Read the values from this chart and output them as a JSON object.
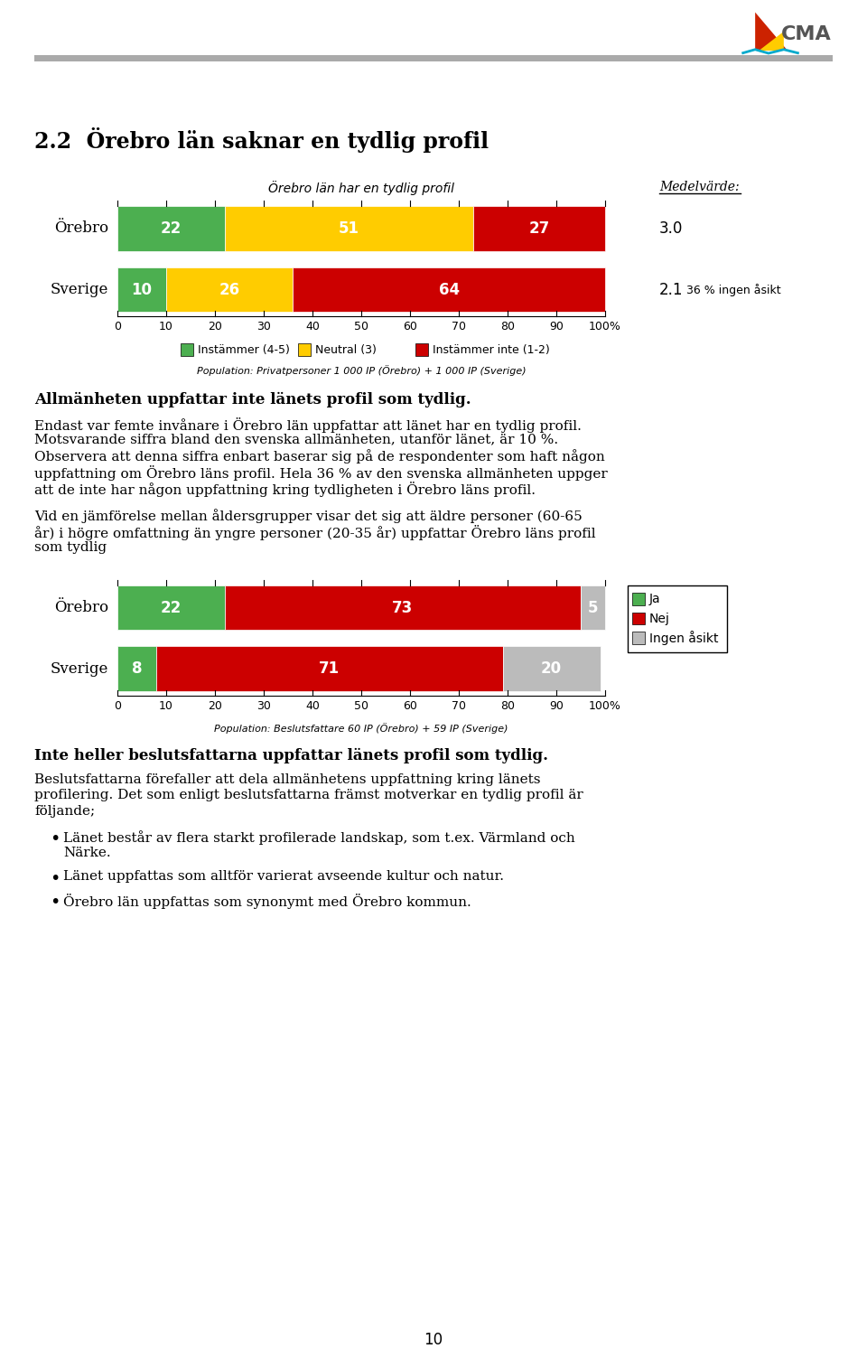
{
  "title_section": "2.2  Örebro län saknar en tydlig profil",
  "chart1_title": "Örebro län har en tydlig profil",
  "chart1_mean_label": "Medelvärde:",
  "chart1_rows": [
    "Örebro",
    "Sverige"
  ],
  "chart1_values": [
    [
      22,
      51,
      27
    ],
    [
      10,
      26,
      64
    ]
  ],
  "chart1_colors": [
    "#4caf50",
    "#ffcc00",
    "#cc0000"
  ],
  "chart1_means": [
    3.0,
    2.1
  ],
  "chart1_note": "36 % ingen åsikt",
  "chart1_legend_labels": [
    "Instämmer (4-5)",
    "Neutral (3)",
    "Instämmer inte (1-2)"
  ],
  "chart1_population": "Population: Privatpersoner 1 000 IP (Örebro) + 1 000 IP (Sverige)",
  "para1_bold": "Allmänheten uppfattar inte länets profil som tydlig.",
  "para1_text": "Endast var femte invånare i Örebro län uppfattar att länet har en tydlig profil. Motsvarande siffra bland den svenska allmänheten, utanför länet, är 10 %. Observera att denna siffra enbart baserar sig på de respondenter som haft någon uppfattning om Örebro läns profil. Hela 36 % av den svenska allmänheten uppger att de inte har någon uppfattning kring tydligheten i Örebro läns profil.",
  "para2_text": "Vid en jämförelse mellan åldersgrupper visar det sig att äldre personer (60-65 år) i högre omfattning än yngre personer (20-35 år) uppfattar Örebro läns profil som tydlig",
  "chart2_rows": [
    "Örebro",
    "Sverige"
  ],
  "chart2_values": [
    [
      22,
      73,
      5
    ],
    [
      8,
      71,
      20
    ]
  ],
  "chart2_colors": [
    "#4caf50",
    "#cc0000",
    "#bbbbbb"
  ],
  "chart2_legend_labels": [
    "Ja",
    "Nej",
    "Ingen åsikt"
  ],
  "chart2_population": "Population: Beslutsfattare 60 IP (Örebro) + 59 IP (Sverige)",
  "para3_bold": "Inte heller beslutsfattarna uppfattar länets profil som tydlig.",
  "para3_text": "Beslutsfattarna förefaller att dela allmänhetens uppfattning kring länets profilering. Det som enligt beslutsfattarna främst motverkar en tydlig profil är följande;",
  "bullets": [
    "Länet består av flera starkt profilerade landskap, som t.ex. Värmland och Närke.",
    "Länet uppfattas som alltför varierat avseende kultur och natur.",
    "Örebro län uppfattas som synonymt med Örebro kommun."
  ],
  "page_number": "10",
  "bg_color": "#ffffff",
  "text_color": "#000000",
  "bar_height": 0.6,
  "logo_color_red": "#cc0000",
  "logo_color_yellow": "#ffcc00",
  "logo_color_blue": "#00aacc"
}
